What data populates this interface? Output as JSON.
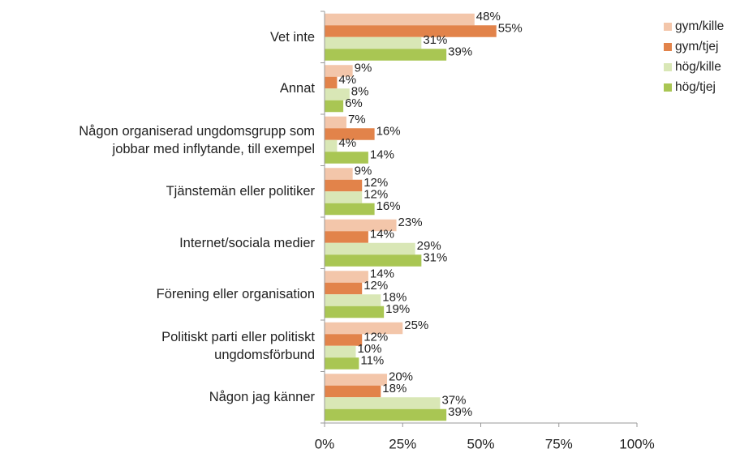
{
  "chart_data": {
    "type": "bar",
    "orientation": "horizontal",
    "categories": [
      "Vet inte",
      "Annat",
      "Någon organiserad ungdomsgrupp som\njobbar med inflytande, till exempel",
      "Tjänstemän eller politiker",
      "Internet/sociala medier",
      "Förening eller organisation",
      "Politiskt parti eller politiskt\nungdomsförbund",
      "Någon jag känner"
    ],
    "series": [
      {
        "name": "gym/kille",
        "color": "#f3c6aa",
        "values": [
          48,
          9,
          7,
          9,
          23,
          14,
          25,
          20
        ],
        "value_labels": [
          "48%",
          "9%",
          "7%",
          "9%",
          "23%",
          "14%",
          "25%",
          "20%"
        ]
      },
      {
        "name": "gym/tjej",
        "color": "#e2834a",
        "values": [
          55,
          4,
          16,
          12,
          14,
          12,
          12,
          18
        ],
        "value_labels": [
          "55%",
          "4%",
          "16%",
          "12%",
          "14%",
          "12%",
          "12%",
          "18%"
        ]
      },
      {
        "name": "hög/kille",
        "color": "#d9e7b6",
        "values": [
          31,
          8,
          4,
          12,
          29,
          18,
          10,
          37
        ],
        "value_labels": [
          "31%",
          "8%",
          "4%",
          "12%",
          "29%",
          "18%",
          "10%",
          "37%"
        ]
      },
      {
        "name": "hög/tjej",
        "color": "#a9c653",
        "values": [
          39,
          6,
          14,
          16,
          31,
          19,
          11,
          39
        ],
        "value_labels": [
          "39%",
          "6%",
          "14%",
          "16%",
          "31%",
          "19%",
          "11%",
          "39%"
        ]
      }
    ],
    "xlim": [
      0,
      100
    ],
    "xticks": [
      {
        "value": 0,
        "label": "0%"
      },
      {
        "value": 25,
        "label": "25%"
      },
      {
        "value": 50,
        "label": "50%"
      },
      {
        "value": 75,
        "label": "75%"
      },
      {
        "value": 100,
        "label": "100%"
      }
    ],
    "legend": "right"
  }
}
